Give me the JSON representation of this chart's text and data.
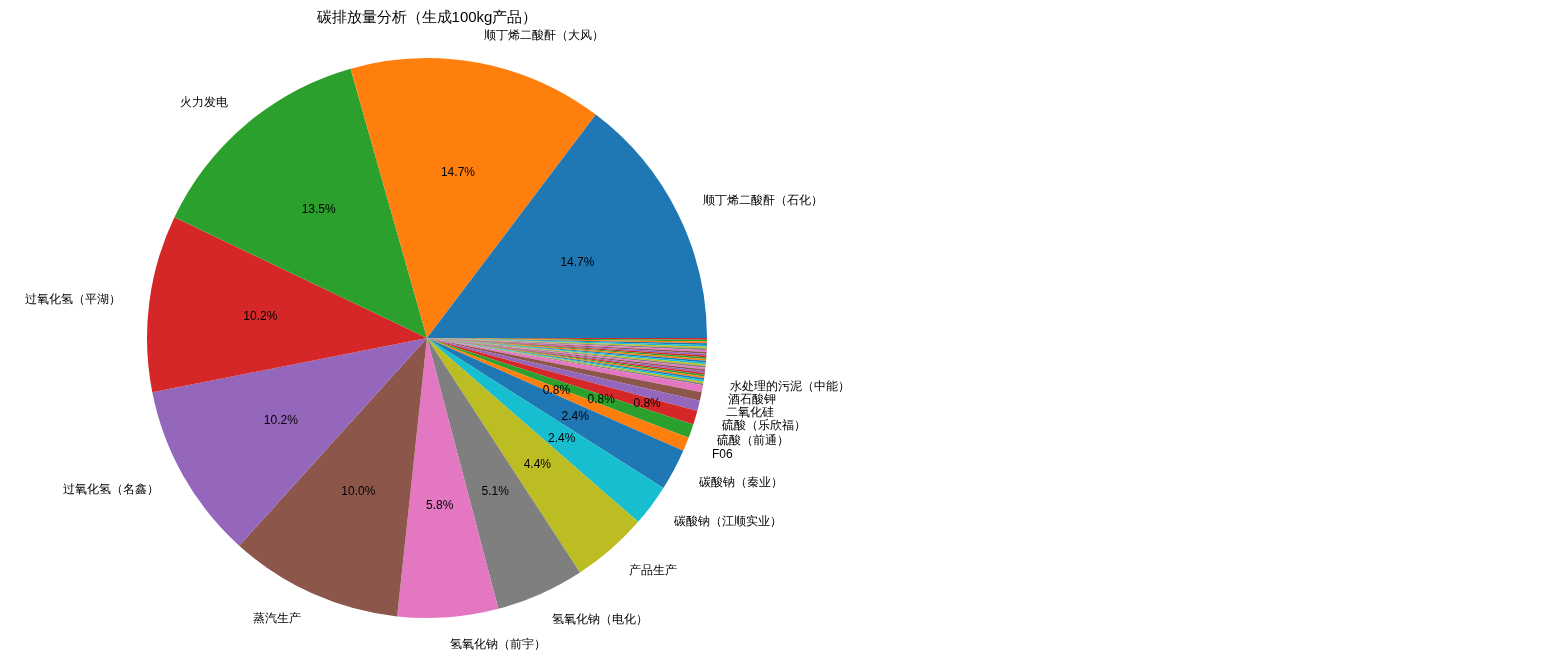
{
  "chart_data": {
    "type": "pie",
    "title": "碳排放量分析（生成100kg产品）",
    "categories": [
      "顺丁烯二酸酐（石化）",
      "顺丁烯二酸酐（大风）",
      "火力发电",
      "过氧化氢（平湖）",
      "过氧化氢（名鑫）",
      "蒸汽生产",
      "氢氧化钠（前宇）",
      "氢氧化钠（电化）",
      "产品生产",
      "碳酸钠（江顺实业）",
      "碳酸钠（秦业）",
      "F06",
      "硫酸（前通）",
      "硫酸（乐欣福）",
      "二氧化硅",
      "酒石酸钾",
      "水处理的污泥（中能）",
      null,
      null,
      null,
      null,
      null,
      null,
      null,
      null,
      null,
      null,
      null,
      null,
      null,
      null,
      null,
      null,
      null,
      null,
      null,
      null,
      null,
      null,
      null,
      null,
      null,
      null,
      null
    ],
    "values": [
      14.7,
      14.7,
      13.5,
      10.2,
      10.2,
      10.0,
      5.8,
      5.1,
      4.4,
      2.4,
      2.4,
      0.8,
      0.8,
      0.8,
      0.6,
      0.5,
      0.4,
      0.1,
      0.1,
      0.1,
      0.1,
      0.1,
      0.1,
      0.1,
      0.1,
      0.1,
      0.1,
      0.1,
      0.1,
      0.1,
      0.1,
      0.1,
      0.1,
      0.1,
      0.1,
      0.1,
      0.1,
      0.1,
      0.1,
      0.1,
      0.1,
      0.1,
      0.1,
      0.1
    ],
    "value_labels": [
      "14.7%",
      "14.7%",
      "13.5%",
      "10.2%",
      "10.2%",
      "10.0%",
      "5.8%",
      "5.1%",
      "4.4%",
      "2.4%",
      "2.4%",
      "0.8%",
      "0.8%",
      "0.8%",
      null,
      null,
      null,
      null,
      null,
      null,
      null,
      null,
      null,
      null,
      null,
      null,
      null,
      null,
      null,
      null,
      null,
      null,
      null,
      null,
      null,
      null,
      null,
      null,
      null,
      null,
      null,
      null,
      null,
      null
    ],
    "colors": [
      "#1f77b4",
      "#ff7f0e",
      "#2ca02c",
      "#d62728",
      "#9467bd",
      "#8c564b",
      "#e377c2",
      "#7f7f7f",
      "#bcbd22",
      "#17becf",
      "#1f77b4",
      "#ff7f0e",
      "#2ca02c",
      "#d62728",
      "#9467bd",
      "#8c564b",
      "#e377c2",
      "#7f7f7f",
      "#bcbd22",
      "#17becf",
      "#1f77b4",
      "#ff7f0e",
      "#2ca02c",
      "#d62728",
      "#9467bd",
      "#8c564b",
      "#e377c2",
      "#7f7f7f",
      "#bcbd22",
      "#17becf",
      "#1f77b4",
      "#ff7f0e",
      "#2ca02c",
      "#d62728",
      "#9467bd",
      "#8c564b",
      "#e377c2",
      "#7f7f7f",
      "#bcbd22",
      "#17becf",
      "#1f77b4",
      "#ff7f0e",
      "#2ca02c",
      "#d62728"
    ]
  }
}
